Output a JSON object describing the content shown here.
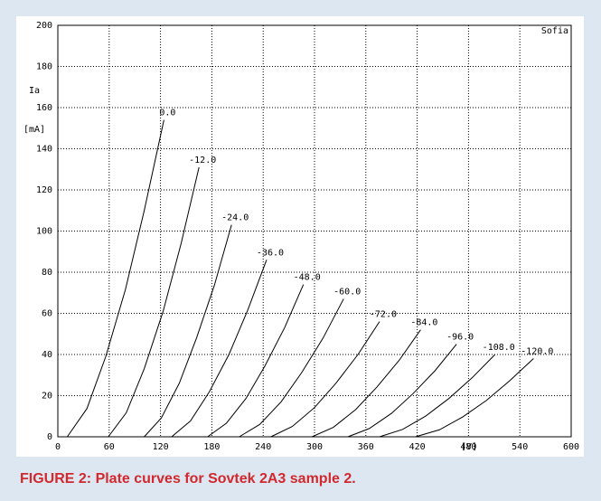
{
  "chart_data": {
    "type": "line",
    "annotation": "Sofia",
    "ylabel": "Ia",
    "yunit": "[mA]",
    "xunit": "[V]",
    "caption": "FIGURE 2: Plate curves for Sovtek 2A3 sample 2.",
    "color": "#000000",
    "grid": true,
    "xlim": [
      0,
      600
    ],
    "xticks": [
      0,
      60,
      120,
      180,
      240,
      300,
      360,
      420,
      480,
      540,
      600
    ],
    "ylim": [
      0,
      200
    ],
    "yticks": [
      0,
      20,
      40,
      60,
      80,
      100,
      120,
      140,
      160,
      180,
      200
    ],
    "series": [
      {
        "name": "0.0",
        "x": [
          11,
          34,
          56,
          79,
          101,
          124
        ],
        "values": [
          0,
          13.7,
          39,
          71.6,
          110,
          154
        ]
      },
      {
        "name": "-12.0",
        "x": [
          59,
          80,
          101,
          123,
          144,
          165
        ],
        "values": [
          0,
          11.7,
          33.1,
          60.9,
          93.8,
          131
        ]
      },
      {
        "name": "-24.0",
        "x": [
          101,
          121,
          142,
          162,
          183,
          203
        ],
        "values": [
          0,
          9.2,
          26.1,
          47.9,
          73.7,
          103
        ]
      },
      {
        "name": "-36.0",
        "x": [
          133,
          155,
          177,
          200,
          222,
          244
        ],
        "values": [
          0,
          7.7,
          21.8,
          40,
          61.6,
          86
        ]
      },
      {
        "name": "-48.0",
        "x": [
          175,
          197,
          220,
          242,
          265,
          287
        ],
        "values": [
          0,
          6.6,
          18.7,
          34.4,
          53,
          74
        ]
      },
      {
        "name": "-60.0",
        "x": [
          212,
          236,
          261,
          285,
          310,
          334
        ],
        "values": [
          0,
          6,
          17,
          31.2,
          48,
          67
        ]
      },
      {
        "name": "-72.0",
        "x": [
          249,
          274,
          300,
          325,
          351,
          376
        ],
        "values": [
          0,
          5,
          14.2,
          26,
          40.1,
          56
        ]
      },
      {
        "name": "-84.0",
        "x": [
          297,
          322,
          348,
          373,
          399,
          424
        ],
        "values": [
          0,
          4.6,
          13.2,
          24.2,
          37.2,
          52
        ]
      },
      {
        "name": "-96.0",
        "x": [
          339,
          364,
          390,
          415,
          441,
          466
        ],
        "values": [
          0,
          4,
          11.4,
          20.9,
          32.2,
          45
        ]
      },
      {
        "name": "-108.0",
        "x": [
          376,
          403,
          430,
          457,
          484,
          511
        ],
        "values": [
          0,
          3.6,
          10.1,
          18.6,
          28.6,
          40
        ]
      },
      {
        "name": "-120.0",
        "x": [
          418,
          446,
          473,
          501,
          528,
          556
        ],
        "values": [
          0,
          3.4,
          9.6,
          17.7,
          27.2,
          38
        ]
      }
    ]
  }
}
